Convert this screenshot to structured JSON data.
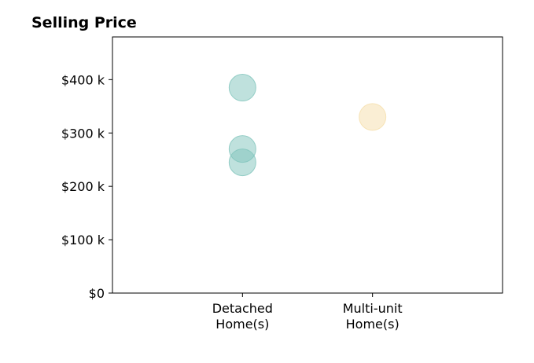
{
  "chart_data": {
    "type": "scatter",
    "title": "Selling Price",
    "xlabel": "",
    "ylabel": "",
    "categories": [
      [
        "Detached",
        "Home(s)"
      ],
      [
        "Multi-unit",
        "Home(s)"
      ]
    ],
    "y_ticks": [
      {
        "value": 0,
        "label": "$0"
      },
      {
        "value": 100000,
        "label": "$100 k"
      },
      {
        "value": 200000,
        "label": "$200 k"
      },
      {
        "value": 300000,
        "label": "$300 k"
      },
      {
        "value": 400000,
        "label": "$400 k"
      }
    ],
    "xlim": [
      0,
      3
    ],
    "ylim": [
      0,
      480000
    ],
    "grid": false,
    "legend": "none",
    "points": [
      {
        "category": 0,
        "value": 385000,
        "color": "#80c4bb"
      },
      {
        "category": 0,
        "value": 270000,
        "color": "#80c4bb"
      },
      {
        "category": 0,
        "value": 245000,
        "color": "#80c4bb"
      },
      {
        "category": 1,
        "value": 330000,
        "color": "#f5deaa"
      }
    ]
  }
}
